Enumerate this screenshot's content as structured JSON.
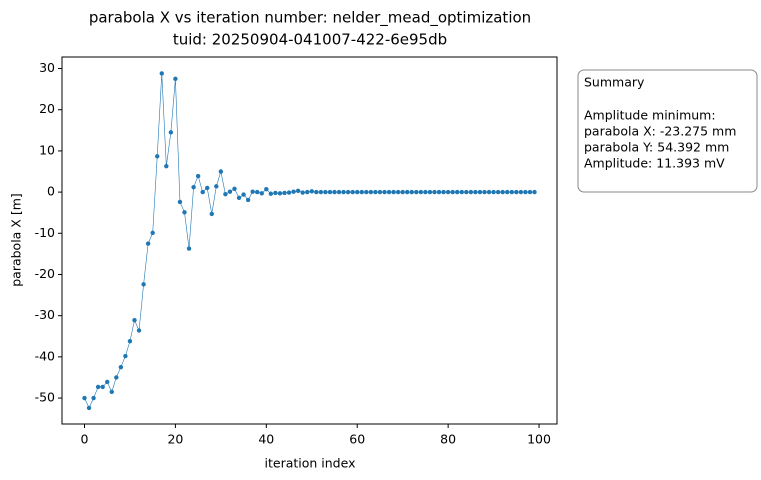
{
  "chart_data": {
    "type": "line",
    "title": "parabola X vs iteration number: nelder_mead_optimization",
    "subtitle": "tuid: 20250904-041007-422-6e95db",
    "x_label": "iteration index",
    "y_label": "parabola X [m]",
    "x": [
      0,
      1,
      2,
      3,
      4,
      5,
      6,
      7,
      8,
      9,
      10,
      11,
      12,
      13,
      14,
      15,
      16,
      17,
      18,
      19,
      20,
      21,
      22,
      23,
      24,
      25,
      26,
      27,
      28,
      29,
      30,
      31,
      32,
      33,
      34,
      35,
      36,
      37,
      38,
      39,
      40,
      41,
      42,
      43,
      44,
      45,
      46,
      47,
      48,
      49,
      50,
      51,
      52,
      53,
      54,
      55,
      56,
      57,
      58,
      59,
      60,
      61,
      62,
      63,
      64,
      65,
      66,
      67,
      68,
      69,
      70,
      71,
      72,
      73,
      74,
      75,
      76,
      77,
      78,
      79,
      80,
      81,
      82,
      83,
      84,
      85,
      86,
      87,
      88,
      89,
      90,
      91,
      92,
      93,
      94,
      95,
      96,
      97,
      98,
      99
    ],
    "series": [
      {
        "name": "parabola X",
        "color": "#1f77b4",
        "values": [
          -50,
          -52.4,
          -50,
          -47.3,
          -47.3,
          -46.1,
          -48.5,
          -45,
          -42.5,
          -39.8,
          -36.2,
          -31.1,
          -33.6,
          -22.4,
          -12.5,
          -9.9,
          8.7,
          28.8,
          6.3,
          14.5,
          27.5,
          -2.4,
          -4.9,
          -13.7,
          1.2,
          3.9,
          0,
          1,
          -5.3,
          1.4,
          5,
          -0.5,
          0.1,
          0.8,
          -1.4,
          -0.6,
          -1.9,
          0.1,
          0,
          -0.3,
          0.7,
          -0.4,
          -0.2,
          -0.3,
          -0.2,
          -0.1,
          0.1,
          0.3,
          -0.1,
          0,
          0.2,
          0,
          0,
          0,
          0,
          0,
          0,
          0,
          0,
          0,
          0,
          0,
          0,
          0,
          0,
          0,
          0,
          0,
          0,
          0,
          0,
          0,
          0,
          0,
          0,
          0,
          0,
          0,
          0,
          0,
          0,
          0,
          0,
          0,
          0,
          0,
          0,
          0,
          0,
          0,
          0,
          0,
          0,
          0,
          0,
          0,
          0,
          0,
          0,
          0
        ]
      }
    ],
    "xlim": [
      -4.95,
      103.95
    ],
    "xticks": [
      0,
      20,
      40,
      60,
      80,
      100
    ],
    "ylim": [
      -56.3,
      32.8
    ],
    "yticks": [
      -50,
      -40,
      -30,
      -20,
      -10,
      0,
      10,
      20,
      30
    ],
    "summary": {
      "title": "Summary",
      "heading": "Amplitude minimum:",
      "lines": [
        "parabola X: -23.275 mm",
        "parabola Y: 54.392 mm",
        "Amplitude: 11.393 mV"
      ]
    }
  }
}
